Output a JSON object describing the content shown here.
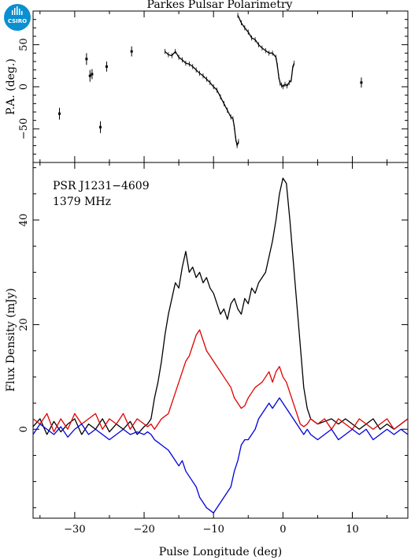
{
  "title": "Parkes Pulsar Polarimetry",
  "logo": {
    "text": "CSIRO",
    "icon": "csiro-logo",
    "color": "#0a8fd0"
  },
  "annotation": {
    "psr": "PSR J1231−4609",
    "freq": "1379 MHz"
  },
  "chart_data": [
    {
      "panel": "position-angle",
      "type": "scatter",
      "ylabel": "P.A. (deg.)",
      "xlim": [
        -36,
        18
      ],
      "ylim": [
        -90,
        90
      ],
      "yticks": [
        -50,
        0,
        50
      ],
      "ytick_labels": [
        "−50",
        "0",
        "50"
      ],
      "points": [
        {
          "x": -32.2,
          "y": -32,
          "err": 7
        },
        {
          "x": -28.3,
          "y": 33,
          "err": 7
        },
        {
          "x": -27.8,
          "y": 13,
          "err": 7
        },
        {
          "x": -27.5,
          "y": 15,
          "err": 6
        },
        {
          "x": -26.3,
          "y": -48,
          "err": 7
        },
        {
          "x": -25.4,
          "y": 24,
          "err": 6
        },
        {
          "x": -21.8,
          "y": 42,
          "err": 6
        },
        {
          "x": 11.3,
          "y": 5,
          "err": 6
        }
      ],
      "track_1": [
        {
          "x": -17.0,
          "y": 42
        },
        {
          "x": -16.5,
          "y": 38
        },
        {
          "x": -16.0,
          "y": 37
        },
        {
          "x": -15.5,
          "y": 42
        },
        {
          "x": -15.0,
          "y": 35
        },
        {
          "x": -14.5,
          "y": 32
        },
        {
          "x": -14.0,
          "y": 28
        },
        {
          "x": -13.5,
          "y": 27
        },
        {
          "x": -13.0,
          "y": 24
        },
        {
          "x": -12.5,
          "y": 20
        },
        {
          "x": -12.0,
          "y": 16
        },
        {
          "x": -11.5,
          "y": 13
        },
        {
          "x": -11.0,
          "y": 9
        },
        {
          "x": -10.5,
          "y": 5
        },
        {
          "x": -10.0,
          "y": 0
        },
        {
          "x": -9.5,
          "y": -4
        },
        {
          "x": -9.0,
          "y": -12
        },
        {
          "x": -8.5,
          "y": -20
        },
        {
          "x": -8.0,
          "y": -28
        },
        {
          "x": -7.5,
          "y": -36
        },
        {
          "x": -7.2,
          "y": -38
        },
        {
          "x": -7.0,
          "y": -48
        },
        {
          "x": -6.8,
          "y": -62
        },
        {
          "x": -6.6,
          "y": -70
        },
        {
          "x": -6.4,
          "y": -65
        }
      ],
      "track_2": [
        {
          "x": -6.5,
          "y": 85
        },
        {
          "x": -6.0,
          "y": 76
        },
        {
          "x": -5.5,
          "y": 70
        },
        {
          "x": -5.0,
          "y": 65
        },
        {
          "x": -4.5,
          "y": 58
        },
        {
          "x": -4.0,
          "y": 56
        },
        {
          "x": -3.5,
          "y": 50
        },
        {
          "x": -3.0,
          "y": 46
        },
        {
          "x": -2.5,
          "y": 43
        },
        {
          "x": -2.0,
          "y": 40
        },
        {
          "x": -1.5,
          "y": 40
        },
        {
          "x": -1.0,
          "y": 35
        },
        {
          "x": -0.8,
          "y": 25
        },
        {
          "x": -0.6,
          "y": 12
        },
        {
          "x": -0.4,
          "y": 4
        },
        {
          "x": -0.2,
          "y": 2
        },
        {
          "x": 0.0,
          "y": 0
        },
        {
          "x": 0.3,
          "y": 3
        },
        {
          "x": 0.6,
          "y": 1
        },
        {
          "x": 0.9,
          "y": 5
        },
        {
          "x": 1.2,
          "y": 8
        },
        {
          "x": 1.4,
          "y": 22
        },
        {
          "x": 1.6,
          "y": 28
        }
      ]
    },
    {
      "panel": "flux-density",
      "type": "line",
      "ylabel": "Flux Density (mJy)",
      "xlabel": "Pulse Longitude (deg)",
      "xlim": [
        -36,
        18
      ],
      "ylim": [
        -17,
        51
      ],
      "xticks": [
        -30,
        -20,
        -10,
        0,
        10
      ],
      "xtick_labels": [
        "−30",
        "−20",
        "−10",
        "0",
        "10"
      ],
      "yticks": [
        0,
        20,
        40
      ],
      "ytick_labels": [
        "0",
        "20",
        "40"
      ],
      "series": [
        {
          "color": "#000000",
          "x": [
            -36,
            -35,
            -34,
            -33,
            -32,
            -31,
            -30,
            -29,
            -28,
            -27,
            -26,
            -25,
            -24,
            -23,
            -22,
            -21,
            -20,
            -19.5,
            -19,
            -18.5,
            -18,
            -17.5,
            -17,
            -16.5,
            -16,
            -15.5,
            -15,
            -14.5,
            -14,
            -13.5,
            -13,
            -12.5,
            -12,
            -11.5,
            -11,
            -10.5,
            -10,
            -9.5,
            -9,
            -8.5,
            -8,
            -7.5,
            -7,
            -6.5,
            -6,
            -5.5,
            -5,
            -4.5,
            -4,
            -3.5,
            -3,
            -2.5,
            -2,
            -1.5,
            -1,
            -0.5,
            0,
            0.5,
            1,
            1.5,
            2,
            2.5,
            3,
            3.5,
            4,
            5,
            6,
            7,
            8,
            9,
            10,
            11,
            12,
            13,
            14,
            15,
            16,
            17,
            18
          ],
          "y": [
            0.5,
            2,
            -1,
            1.5,
            -0.5,
            1,
            2,
            -1,
            1,
            0,
            2,
            -0.5,
            1,
            0,
            1.5,
            -1,
            0.5,
            1,
            2,
            6,
            9,
            13,
            18,
            22,
            25,
            28,
            27,
            31,
            34,
            30,
            31,
            29,
            30,
            28,
            29,
            27,
            26,
            24,
            22,
            23,
            21,
            24,
            25,
            23,
            22,
            25,
            24,
            27,
            26,
            28,
            29,
            30,
            33,
            36,
            40,
            45,
            48,
            47,
            40,
            32,
            24,
            16,
            8,
            4,
            2,
            1,
            1.5,
            2,
            1,
            2,
            1,
            0,
            1,
            2,
            0,
            1,
            0,
            1,
            2
          ]
        },
        {
          "color": "#e00000",
          "x": [
            -36,
            -35,
            -34,
            -33,
            -32,
            -31,
            -30,
            -29,
            -28,
            -27,
            -26,
            -25,
            -24,
            -23,
            -22,
            -21,
            -20,
            -19.5,
            -19,
            -18.5,
            -18,
            -17.5,
            -17,
            -16.5,
            -16,
            -15.5,
            -15,
            -14.5,
            -14,
            -13.5,
            -13,
            -12.5,
            -12,
            -11.5,
            -11,
            -10.5,
            -10,
            -9.5,
            -9,
            -8.5,
            -8,
            -7.5,
            -7,
            -6.5,
            -6,
            -5.5,
            -5,
            -4.5,
            -4,
            -3.5,
            -3,
            -2.5,
            -2,
            -1.5,
            -1,
            -0.5,
            0,
            0.5,
            1,
            1.5,
            2,
            2.5,
            3,
            3.5,
            4,
            5,
            6,
            7,
            8,
            9,
            10,
            11,
            12,
            13,
            14,
            15,
            16,
            17,
            18
          ],
          "y": [
            2,
            1,
            3,
            -0.5,
            2,
            0,
            3,
            1,
            2,
            3,
            0,
            2,
            1,
            3,
            0,
            2,
            1,
            0.5,
            1,
            0,
            1,
            2,
            2.5,
            3,
            5,
            7,
            9,
            11,
            13,
            14,
            16,
            18,
            19,
            17,
            15,
            14,
            13,
            12,
            11,
            10,
            9,
            8,
            6,
            5,
            4,
            4.5,
            6,
            7,
            8,
            8.5,
            9,
            10,
            11,
            9,
            11,
            12,
            10,
            9,
            7,
            5,
            3,
            1,
            0.5,
            1,
            2,
            1,
            2,
            0,
            2,
            1,
            0,
            2,
            1,
            0,
            1,
            2,
            0,
            1,
            2
          ]
        },
        {
          "color": "#0000dd",
          "x": [
            -36,
            -35,
            -34,
            -33,
            -32,
            -31,
            -30,
            -29,
            -28,
            -27,
            -26,
            -25,
            -24,
            -23,
            -22,
            -21,
            -20,
            -19.5,
            -19,
            -18.5,
            -18,
            -17.5,
            -17,
            -16.5,
            -16,
            -15.5,
            -15,
            -14.5,
            -14,
            -13.5,
            -13,
            -12.5,
            -12,
            -11.5,
            -11,
            -10.5,
            -10,
            -9.5,
            -9,
            -8.5,
            -8,
            -7.5,
            -7,
            -6.5,
            -6,
            -5.5,
            -5,
            -4.5,
            -4,
            -3.5,
            -3,
            -2.5,
            -2,
            -1.5,
            -1,
            -0.5,
            0,
            0.5,
            1,
            1.5,
            2,
            2.5,
            3,
            3.5,
            4,
            5,
            6,
            7,
            8,
            9,
            10,
            11,
            12,
            13,
            14,
            15,
            16,
            17,
            18
          ],
          "y": [
            -1,
            1,
            0,
            -1,
            0.5,
            -1.5,
            0,
            1,
            -1,
            0,
            -1,
            -2,
            -1,
            0,
            -1,
            -0.5,
            -1,
            -0.5,
            -1,
            -2,
            -2.5,
            -3,
            -3.5,
            -4,
            -5,
            -6,
            -7,
            -6,
            -8,
            -9,
            -10,
            -11,
            -13,
            -14,
            -15,
            -15.5,
            -16,
            -15,
            -14,
            -13,
            -12,
            -11,
            -8,
            -6,
            -3,
            -2,
            -2,
            -1,
            0,
            2,
            3,
            4,
            5,
            4,
            5,
            6,
            5,
            4,
            3,
            2,
            1,
            0,
            -1,
            0,
            -1,
            -2,
            -1,
            0,
            -2,
            -1,
            0,
            -1,
            0,
            -2,
            -1,
            0,
            -1,
            0,
            -1
          ]
        }
      ]
    }
  ]
}
